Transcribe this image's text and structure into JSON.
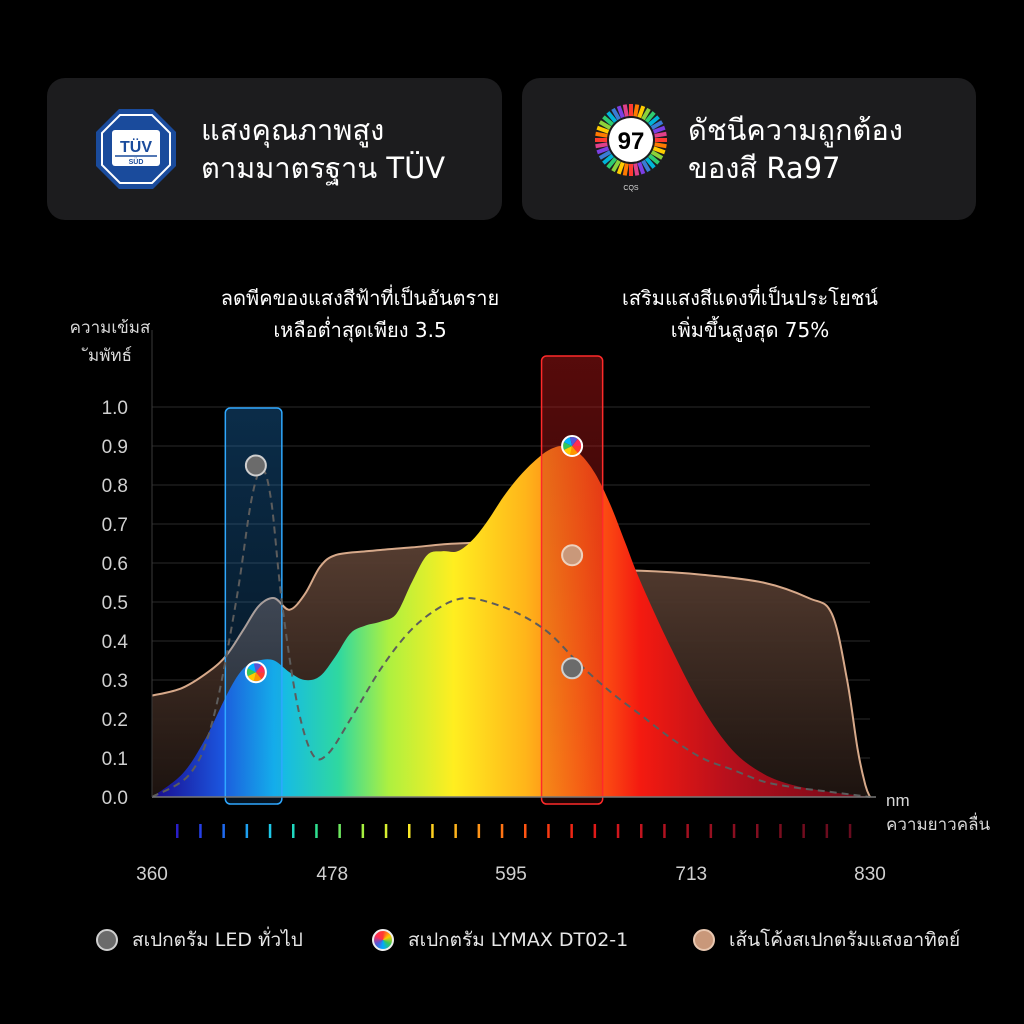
{
  "cards": {
    "left": {
      "badge_top": "TÜV",
      "badge_bottom": "SÜD",
      "line1": "แสงคุณภาพสูง",
      "line2": "ตามมาตรฐาน TÜV"
    },
    "right": {
      "badge_number": "97",
      "badge_sub": "CQS",
      "line1": "ดัชนีความถูกต้อง",
      "line2": "ของสี Ra97"
    }
  },
  "annotations": {
    "blue": {
      "line1": "ลดพีคของแสงสีฟ้าที่เป็นอันตราย",
      "line2": "เหลือต่ำสุดเพียง 3.5"
    },
    "red": {
      "line1": "เสริมแสงสีแดงที่เป็นประโยชน์",
      "line2": "เพิ่มขึ้นสูงสุด 75%"
    }
  },
  "legend": {
    "led": "สเปกตรัม LED ทั่วไป",
    "lymax": "สเปกตรัม LYMAX DT02-1",
    "sun": "เส้นโค้งสเปกตรัมแสงอาทิตย์"
  },
  "colors": {
    "card_bg": "#1c1c1e",
    "sun_stroke": "#d7a98a",
    "blue_band": "#2fa8ff",
    "red_band": "#ff2a2a",
    "led_dot": "#6b6b6b"
  },
  "chart_data": {
    "type": "area",
    "ylabel": "ความเข้มสัมพัทธ์",
    "xlabel_unit": "nm",
    "xlabel": "ความยาวคลื่น",
    "xlim": [
      360,
      830
    ],
    "ylim": [
      0,
      1.0
    ],
    "x_ticks": [
      360,
      478,
      595,
      713,
      830
    ],
    "y_ticks": [
      "0.0",
      "0.1",
      "0.2",
      "0.3",
      "0.4",
      "0.5",
      "0.6",
      "0.7",
      "0.8",
      "0.9",
      "1.0"
    ],
    "grid": true,
    "legend_position": "bottom",
    "highlight_bands": [
      {
        "range": [
          408,
          445
        ],
        "color": "blue"
      },
      {
        "range": [
          615,
          655
        ],
        "color": "red"
      }
    ],
    "series": [
      {
        "name": "สเปกตรัม LED ทั่วไป",
        "style": "dashed",
        "x": [
          360,
          385,
          400,
          415,
          425,
          432,
          438,
          445,
          455,
          465,
          475,
          490,
          510,
          530,
          550,
          565,
          580,
          600,
          620,
          640,
          660,
          680,
          700,
          720,
          740,
          760,
          780,
          800,
          820,
          830
        ],
        "y": [
          0.0,
          0.06,
          0.2,
          0.5,
          0.76,
          0.84,
          0.76,
          0.5,
          0.24,
          0.11,
          0.11,
          0.2,
          0.33,
          0.43,
          0.49,
          0.51,
          0.5,
          0.47,
          0.42,
          0.34,
          0.27,
          0.21,
          0.15,
          0.1,
          0.07,
          0.04,
          0.025,
          0.015,
          0.005,
          0.0
        ]
      },
      {
        "name": "สเปกตรัม LYMAX DT02-1",
        "style": "filled",
        "x": [
          360,
          380,
          395,
          410,
          420,
          430,
          440,
          450,
          460,
          470,
          480,
          490,
          500,
          510,
          520,
          530,
          540,
          550,
          560,
          570,
          580,
          590,
          600,
          610,
          620,
          630,
          640,
          650,
          660,
          670,
          680,
          700,
          720,
          740,
          760,
          780,
          800,
          820,
          830
        ],
        "y": [
          0.0,
          0.06,
          0.15,
          0.27,
          0.33,
          0.35,
          0.35,
          0.32,
          0.3,
          0.31,
          0.36,
          0.42,
          0.44,
          0.45,
          0.47,
          0.55,
          0.62,
          0.63,
          0.63,
          0.66,
          0.71,
          0.77,
          0.82,
          0.86,
          0.89,
          0.9,
          0.88,
          0.83,
          0.75,
          0.65,
          0.55,
          0.38,
          0.23,
          0.12,
          0.06,
          0.03,
          0.015,
          0.005,
          0.0
        ]
      },
      {
        "name": "เส้นโค้งสเปกตรัมแสงอาทิตย์",
        "style": "outline",
        "x": [
          360,
          380,
          400,
          410,
          420,
          430,
          440,
          450,
          460,
          470,
          480,
          500,
          530,
          560,
          600,
          630,
          650,
          680,
          720,
          760,
          790,
          805,
          815,
          822,
          827,
          830
        ],
        "y": [
          0.26,
          0.28,
          0.33,
          0.37,
          0.43,
          0.49,
          0.51,
          0.48,
          0.52,
          0.59,
          0.62,
          0.63,
          0.64,
          0.65,
          0.65,
          0.6,
          0.58,
          0.58,
          0.57,
          0.55,
          0.51,
          0.47,
          0.3,
          0.12,
          0.03,
          0.0
        ]
      }
    ],
    "markers": [
      {
        "series": "สเปกตรัม LED ทั่วไป",
        "x": 428,
        "y": 0.85
      },
      {
        "series": "สเปกตรัม LYMAX DT02-1",
        "x": 428,
        "y": 0.32
      },
      {
        "series": "สเปกตรัม LYMAX DT02-1",
        "x": 635,
        "y": 0.9
      },
      {
        "series": "เส้นโค้งสเปกตรัมแสงอาทิตย์",
        "x": 635,
        "y": 0.62
      },
      {
        "series": "สเปกตรัม LED ทั่วไป",
        "x": 635,
        "y": 0.33
      }
    ]
  }
}
